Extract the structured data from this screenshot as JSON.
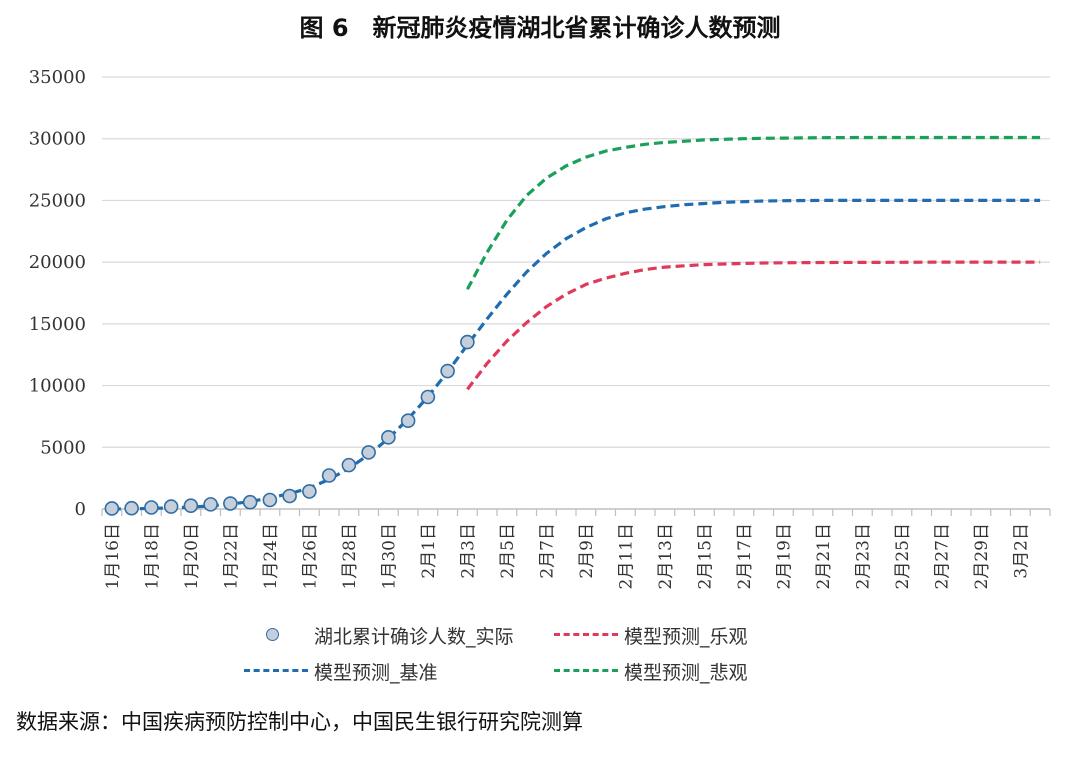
{
  "title": "图 6　新冠肺炎疫情湖北省累计确诊人数预测",
  "source": "数据来源：中国疾病预防控制中心，中国民生银行研究院测算",
  "chart_data": {
    "type": "line",
    "title": "图 6　新冠肺炎疫情湖北省累计确诊人数预测",
    "xlabel": "",
    "ylabel": "",
    "ylim": [
      0,
      35000
    ],
    "yticks": [
      0,
      5000,
      10000,
      15000,
      20000,
      25000,
      30000,
      35000
    ],
    "ytick_labels": [
      "0",
      "5000",
      "10000",
      "15000",
      "20000",
      "25000",
      "30000",
      "35000"
    ],
    "grid": true,
    "legend_position": "bottom",
    "x_start": "1月16日",
    "x_end": "3月3日",
    "x_tick_labels": [
      "1月16日",
      "1月18日",
      "1月20日",
      "1月22日",
      "1月24日",
      "1月26日",
      "1月28日",
      "1月30日",
      "2月1日",
      "2月3日",
      "2月5日",
      "2月7日",
      "2月9日",
      "2月11日",
      "2月13日",
      "2月15日",
      "2月17日",
      "2月19日",
      "2月21日",
      "2月23日",
      "2月25日",
      "2月27日",
      "2月29日",
      "3月2日"
    ],
    "series": [
      {
        "name": "湖北累计确诊人数_实际",
        "style": "markers",
        "color": "#2f6ea5",
        "fill": "#c4cfdb",
        "x": [
          "1月16日",
          "1月17日",
          "1月18日",
          "1月19日",
          "1月20日",
          "1月21日",
          "1月22日",
          "1月23日",
          "1月24日",
          "1月25日",
          "1月26日",
          "1月27日",
          "1月28日",
          "1月29日",
          "1月30日",
          "1月31日",
          "2月1日",
          "2月2日",
          "2月3日"
        ],
        "values": [
          45,
          62,
          121,
          198,
          270,
          375,
          444,
          549,
          729,
          1052,
          1423,
          2714,
          3554,
          4586,
          5806,
          7153,
          9074,
          11177,
          13522
        ]
      },
      {
        "name": "模型预测_乐观",
        "style": "dashed",
        "color": "#e03a5a",
        "x": [
          "2月3日",
          "2月4日",
          "2月5日",
          "2月6日",
          "2月7日",
          "2月8日",
          "2月9日",
          "2月10日",
          "2月11日",
          "2月12日",
          "2月13日",
          "2月14日",
          "2月15日",
          "2月16日",
          "2月17日",
          "2月18日",
          "2月19日",
          "2月21日",
          "2月23日",
          "2月25日",
          "2月27日",
          "2月29日",
          "3月2日",
          "3月3日"
        ],
        "values": [
          9700,
          11800,
          13600,
          15100,
          16400,
          17400,
          18200,
          18700,
          19100,
          19400,
          19600,
          19700,
          19800,
          19850,
          19900,
          19930,
          19950,
          19970,
          19980,
          19990,
          20000,
          20000,
          20000,
          20000
        ]
      },
      {
        "name": "模型预测_基准",
        "style": "dashed",
        "color": "#1f6db0",
        "x": [
          "1月16日",
          "1月17日",
          "1月18日",
          "1月19日",
          "1月20日",
          "1月21日",
          "1月22日",
          "1月23日",
          "1月24日",
          "1月25日",
          "1月26日",
          "1月27日",
          "1月28日",
          "1月29日",
          "1月30日",
          "1月31日",
          "2月1日",
          "2月2日",
          "2月3日",
          "2月4日",
          "2月5日",
          "2月6日",
          "2月7日",
          "2月8日",
          "2月9日",
          "2月10日",
          "2月11日",
          "2月12日",
          "2月13日",
          "2月14日",
          "2月15日",
          "2月16日",
          "2月17日",
          "2月18日",
          "2月19日",
          "2月21日",
          "2月23日",
          "2月25日",
          "2月27日",
          "2月29日",
          "3月2日",
          "3月3日"
        ],
        "values": [
          10,
          20,
          50,
          90,
          150,
          250,
          400,
          600,
          900,
          1250,
          1700,
          2400,
          3300,
          4400,
          5700,
          7300,
          9100,
          11100,
          13300,
          15400,
          17400,
          19200,
          20700,
          21900,
          22800,
          23500,
          24000,
          24300,
          24500,
          24650,
          24750,
          24850,
          24900,
          24950,
          24980,
          25000,
          25000,
          25000,
          25000,
          25000,
          25000,
          25000
        ]
      },
      {
        "name": "模型预测_悲观",
        "style": "dashed",
        "color": "#1aa05a",
        "x": [
          "2月3日",
          "2月4日",
          "2月5日",
          "2月6日",
          "2月7日",
          "2月8日",
          "2月9日",
          "2月10日",
          "2月11日",
          "2月12日",
          "2月13日",
          "2月14日",
          "2月15日",
          "2月16日",
          "2月17日",
          "2月18日",
          "2月19日",
          "2月21日",
          "2月23日",
          "2月25日",
          "2月27日",
          "2月29日",
          "3月2日",
          "3月3日"
        ],
        "values": [
          17800,
          20800,
          23400,
          25400,
          26800,
          27800,
          28500,
          29000,
          29300,
          29550,
          29700,
          29800,
          29900,
          29950,
          30000,
          30030,
          30050,
          30080,
          30100,
          30100,
          30100,
          30100,
          30100,
          30100
        ]
      }
    ]
  }
}
